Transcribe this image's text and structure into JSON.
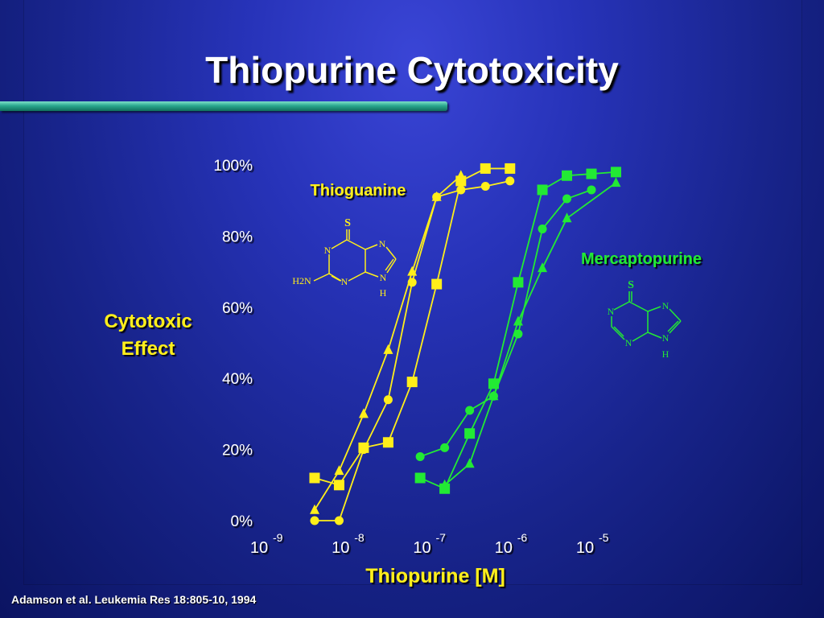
{
  "slide": {
    "title": "Thiopurine Cytotoxicity",
    "citation": "Adamson et al. Leukemia Res 18:805-10, 1994"
  },
  "chart_data": {
    "type": "line",
    "ylabel_lines": [
      "Cytotoxic",
      "Effect"
    ],
    "xlabel": "Thiopurine [M]",
    "x_scale": "log",
    "xlim": [
      1e-09,
      1e-05
    ],
    "ylim": [
      0,
      100
    ],
    "y_ticks": [
      0,
      20,
      40,
      60,
      80,
      100
    ],
    "y_tick_labels": [
      "0%",
      "20%",
      "40%",
      "60%",
      "80%",
      "100%"
    ],
    "x_ticks": [
      {
        "value": 1e-09,
        "base": "10",
        "exp": "-9"
      },
      {
        "value": 1e-08,
        "base": "10",
        "exp": "-8"
      },
      {
        "value": 1e-07,
        "base": "10",
        "exp": "-7"
      },
      {
        "value": 1e-06,
        "base": "10",
        "exp": "-6"
      },
      {
        "value": 1e-05,
        "base": "10",
        "exp": "-5"
      }
    ],
    "groups": [
      {
        "name": "Thioguanine",
        "color": "#ffef1a",
        "series": [
          {
            "marker": "square",
            "x": [
              4e-09,
              8e-09,
              1.6e-08,
              3.2e-08,
              6.3e-08,
              1.26e-07,
              2.5e-07,
              5e-07,
              1e-06
            ],
            "y": [
              12,
              10,
              20.5,
              22,
              39,
              66.5,
              95.5,
              99,
              99
            ]
          },
          {
            "marker": "circle",
            "x": [
              4e-09,
              8e-09,
              1.6e-08,
              3.2e-08,
              6.3e-08,
              1.26e-07,
              2.5e-07,
              5e-07,
              1e-06
            ],
            "y": [
              0,
              0,
              20,
              34,
              67,
              91,
              93,
              94,
              95.5
            ]
          },
          {
            "marker": "triangle",
            "x": [
              4e-09,
              8e-09,
              1.6e-08,
              3.2e-08,
              6.3e-08,
              1.26e-07,
              2.5e-07
            ],
            "y": [
              3,
              14,
              30,
              48,
              70,
              91,
              97
            ]
          }
        ]
      },
      {
        "name": "Mercaptopurine",
        "color": "#22ea34",
        "series": [
          {
            "marker": "square",
            "x": [
              7.9e-08,
              1.58e-07,
              3.2e-07,
              6.3e-07,
              1.26e-06,
              2.5e-06,
              5e-06,
              1e-05,
              2e-05
            ],
            "y": [
              12,
              9,
              24.5,
              38.5,
              67,
              93,
              97,
              97.5,
              98
            ]
          },
          {
            "marker": "circle",
            "x": [
              7.9e-08,
              1.58e-07,
              3.2e-07,
              6.3e-07,
              1.26e-06,
              2.5e-06,
              5e-06,
              1e-05
            ],
            "y": [
              18,
              20.5,
              31,
              35,
              52.5,
              82,
              90.5,
              93
            ]
          },
          {
            "marker": "triangle",
            "x": [
              1.58e-07,
              3.2e-07,
              6.3e-07,
              1.26e-06,
              2.5e-06,
              5e-06,
              2e-05
            ],
            "y": [
              10,
              16,
              35,
              56,
              71,
              85,
              95
            ]
          }
        ]
      }
    ],
    "structures": {
      "thioguanine": {
        "S": "S",
        "N": "N",
        "H": "H",
        "amine": "H2N"
      },
      "mercaptopurine": {
        "S": "S",
        "N": "N",
        "H": "H"
      }
    }
  }
}
